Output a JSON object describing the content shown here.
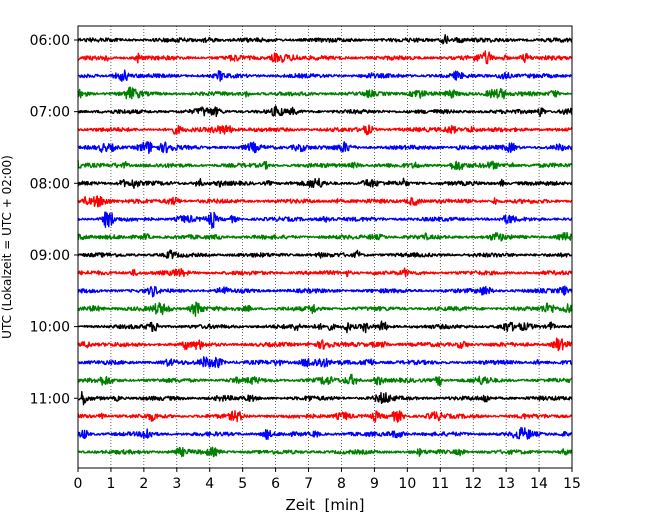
{
  "chart_data": {
    "type": "line",
    "subtype": "helicorder-seismogram",
    "title": "",
    "xlabel": "Zeit  [min]",
    "ylabel": "UTC (Lokalzeit = UTC + 02:00)",
    "xlim": [
      0,
      15
    ],
    "xticks": [
      0,
      1,
      2,
      3,
      4,
      5,
      6,
      7,
      8,
      9,
      10,
      11,
      12,
      13,
      14,
      15
    ],
    "yticks": [
      {
        "label": "06:00",
        "row": 0
      },
      {
        "label": "07:00",
        "row": 4
      },
      {
        "label": "08:00",
        "row": 8
      },
      {
        "label": "09:00",
        "row": 12
      },
      {
        "label": "10:00",
        "row": 16
      },
      {
        "label": "11:00",
        "row": 20
      }
    ],
    "row_minutes": 15,
    "row_colors": [
      "#000000",
      "#ff0000",
      "#0000ff",
      "#008000"
    ],
    "x_grid": "dotted vertical lines at every minute",
    "rows": [
      {
        "start": "06:00",
        "color": "#000000"
      },
      {
        "start": "06:15",
        "color": "#ff0000"
      },
      {
        "start": "06:30",
        "color": "#0000ff"
      },
      {
        "start": "06:45",
        "color": "#008000"
      },
      {
        "start": "07:00",
        "color": "#000000"
      },
      {
        "start": "07:15",
        "color": "#ff0000"
      },
      {
        "start": "07:30",
        "color": "#0000ff"
      },
      {
        "start": "07:45",
        "color": "#008000"
      },
      {
        "start": "08:00",
        "color": "#000000"
      },
      {
        "start": "08:15",
        "color": "#ff0000"
      },
      {
        "start": "08:30",
        "color": "#0000ff"
      },
      {
        "start": "08:45",
        "color": "#008000"
      },
      {
        "start": "09:00",
        "color": "#000000"
      },
      {
        "start": "09:15",
        "color": "#ff0000"
      },
      {
        "start": "09:30",
        "color": "#0000ff"
      },
      {
        "start": "09:45",
        "color": "#008000"
      },
      {
        "start": "10:00",
        "color": "#000000"
      },
      {
        "start": "10:15",
        "color": "#ff0000"
      },
      {
        "start": "10:30",
        "color": "#0000ff"
      },
      {
        "start": "10:45",
        "color": "#008000"
      },
      {
        "start": "11:00",
        "color": "#000000"
      },
      {
        "start": "11:15",
        "color": "#ff0000"
      },
      {
        "start": "11:30",
        "color": "#0000ff"
      },
      {
        "start": "11:45",
        "color": "#008000"
      }
    ]
  }
}
